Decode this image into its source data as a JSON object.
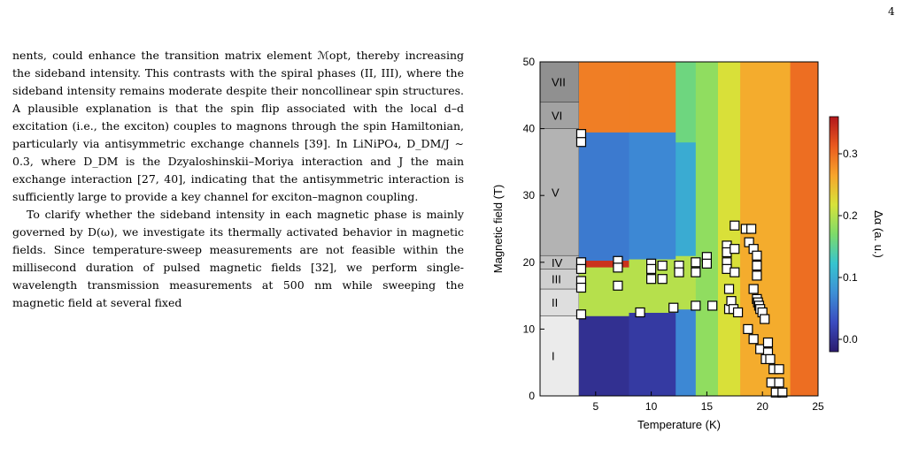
{
  "page_number": "4",
  "paragraphs": [
    "nents, could enhance the transition matrix element ℳopt, thereby increasing the sideband intensity. This contrasts with the spiral phases (II, III), where the sideband intensity remains moderate despite their noncollinear spin structures. A plausible explanation is that the spin flip associated with the local d–d excitation (i.e., the exciton) couples to magnons through the spin Hamiltonian, particularly via antisymmetric exchange channels [39]. In LiNiPO₄, D_DM/J ∼ 0.3, where D_DM is the Dzyaloshinskii–Moriya interaction and J the main exchange interaction [27, 40], indicating that the antisymmetric interaction is sufficiently large to provide a key channel for exciton–magnon coupling.",
    "To clarify whether the sideband intensity in each magnetic phase is mainly governed by D(ω), we investigate its thermally activated behavior in magnetic fields. Since temperature-sweep measurements are not feasible within the millisecond duration of pulsed magnetic fields [32], we perform single-wavelength transmission measurements at 500 nm while sweeping the magnetic field at several fixed"
  ],
  "chart_data": {
    "type": "heatmap",
    "xlabel": "Temperature (K)",
    "ylabel": "Magnetic field (T)",
    "xlim": [
      0,
      25
    ],
    "ylim": [
      0,
      50
    ],
    "xticks": [
      5,
      10,
      15,
      20,
      25
    ],
    "yticks": [
      0,
      10,
      20,
      30,
      40,
      50
    ],
    "colorbar": {
      "label": "Δα (a. u.)",
      "range": [
        -0.02,
        0.36
      ],
      "ticks": [
        "0.0",
        "0.1",
        "0.2",
        "0.3"
      ],
      "tick_values": [
        0.0,
        0.1,
        0.2,
        0.3
      ],
      "colormap": [
        "#2b1b6e",
        "#3b4cc0",
        "#3d8fd6",
        "#37c4cf",
        "#7ddb6a",
        "#d7e33a",
        "#f7a52b",
        "#ea5a1f",
        "#b2171c"
      ]
    },
    "phases": [
      {
        "label": "I",
        "y_min": 0,
        "y_max": 12
      },
      {
        "label": "II",
        "y_min": 12,
        "y_max": 16
      },
      {
        "label": "III",
        "y_min": 16,
        "y_max": 19
      },
      {
        "label": "IV",
        "y_min": 19,
        "y_max": 21
      },
      {
        "label": "V",
        "y_min": 21,
        "y_max": 40
      },
      {
        "label": "VI",
        "y_min": 40,
        "y_max": 44
      },
      {
        "label": "VII",
        "y_min": 44,
        "y_max": 50
      }
    ],
    "phase_colors": [
      "#ebebeb",
      "#dedede",
      "#d0d0d0",
      "#c2c2c2",
      "#b3b3b3",
      "#a2a2a2",
      "#909090"
    ],
    "map": [
      {
        "x0": 3.5,
        "x1": 8,
        "bands": [
          {
            "y0": 0,
            "y1": 12,
            "v": 0.0
          },
          {
            "y0": 12,
            "y1": 19.3,
            "v": 0.2
          },
          {
            "y0": 19.3,
            "y1": 20.3,
            "v": 0.34
          },
          {
            "y0": 20.3,
            "y1": 39.5,
            "v": 0.06
          },
          {
            "y0": 39.5,
            "y1": 50,
            "v": 0.29
          }
        ]
      },
      {
        "x0": 8,
        "x1": 12.2,
        "bands": [
          {
            "y0": 0,
            "y1": 12.5,
            "v": 0.01
          },
          {
            "y0": 12.5,
            "y1": 20.5,
            "v": 0.2
          },
          {
            "y0": 20.5,
            "y1": 39.5,
            "v": 0.07
          },
          {
            "y0": 39.5,
            "y1": 50,
            "v": 0.29
          }
        ]
      },
      {
        "x0": 12.2,
        "x1": 14,
        "bands": [
          {
            "y0": 0,
            "y1": 13,
            "v": 0.07
          },
          {
            "y0": 13,
            "y1": 21,
            "v": 0.2
          },
          {
            "y0": 21,
            "y1": 38,
            "v": 0.1
          },
          {
            "y0": 38,
            "y1": 50,
            "v": 0.16
          }
        ]
      },
      {
        "x0": 14,
        "x1": 16,
        "bands": [
          {
            "y0": 0,
            "y1": 50,
            "v": 0.18
          }
        ]
      },
      {
        "x0": 16,
        "x1": 18,
        "bands": [
          {
            "y0": 0,
            "y1": 50,
            "v": 0.22
          }
        ]
      },
      {
        "x0": 18,
        "x1": 22.5,
        "bands": [
          {
            "y0": 0,
            "y1": 50,
            "v": 0.26
          }
        ]
      },
      {
        "x0": 22.5,
        "x1": 25,
        "bands": [
          {
            "y0": 0,
            "y1": 50,
            "v": 0.3
          }
        ]
      }
    ],
    "series": [
      {
        "marker": "open-square",
        "points": [
          [
            3.7,
            39.2
          ],
          [
            3.7,
            38.0
          ],
          [
            3.7,
            20.0
          ],
          [
            3.7,
            19.0
          ],
          [
            3.7,
            17.2
          ],
          [
            3.7,
            16.2
          ],
          [
            3.7,
            12.2
          ],
          [
            7.0,
            20.2
          ],
          [
            7.0,
            19.2
          ],
          [
            7.0,
            16.5
          ],
          [
            9.0,
            12.5
          ],
          [
            10.0,
            19.8
          ],
          [
            10.0,
            19.0
          ],
          [
            10.0,
            17.5
          ],
          [
            11.0,
            19.5
          ],
          [
            11.0,
            17.5
          ],
          [
            12.0,
            13.2
          ],
          [
            12.5,
            19.5
          ],
          [
            12.5,
            18.5
          ],
          [
            14.0,
            20.0
          ],
          [
            14.0,
            18.5
          ],
          [
            14.0,
            13.5
          ],
          [
            15.0,
            20.8
          ],
          [
            15.0,
            19.8
          ],
          [
            15.5,
            13.5
          ],
          [
            16.8,
            22.5
          ],
          [
            16.8,
            21.5
          ],
          [
            16.8,
            20.0
          ],
          [
            16.8,
            19.0
          ],
          [
            17.0,
            16.0
          ],
          [
            17.0,
            13.0
          ],
          [
            17.2,
            14.2
          ],
          [
            17.4,
            13.0
          ],
          [
            17.5,
            25.5
          ],
          [
            17.5,
            22.0
          ],
          [
            17.5,
            18.5
          ],
          [
            17.8,
            12.5
          ],
          [
            18.5,
            25.0
          ],
          [
            18.8,
            23.0
          ],
          [
            19.0,
            25.0
          ],
          [
            19.2,
            22.0
          ],
          [
            19.5,
            21.0
          ],
          [
            19.5,
            19.5
          ],
          [
            19.5,
            18.0
          ],
          [
            19.2,
            16.0
          ],
          [
            19.5,
            14.5
          ],
          [
            19.6,
            14.0
          ],
          [
            19.7,
            13.5
          ],
          [
            19.8,
            13.0
          ],
          [
            20.0,
            12.5
          ],
          [
            20.2,
            11.5
          ],
          [
            18.7,
            10.0
          ],
          [
            19.2,
            8.5
          ],
          [
            19.8,
            7.0
          ],
          [
            20.5,
            8.0
          ],
          [
            20.5,
            6.5
          ],
          [
            20.3,
            5.5
          ],
          [
            20.7,
            5.5
          ],
          [
            21.0,
            4.0
          ],
          [
            21.5,
            4.0
          ],
          [
            20.8,
            2.0
          ],
          [
            21.5,
            2.0
          ],
          [
            21.2,
            0.5
          ],
          [
            21.8,
            0.5
          ]
        ]
      }
    ]
  }
}
